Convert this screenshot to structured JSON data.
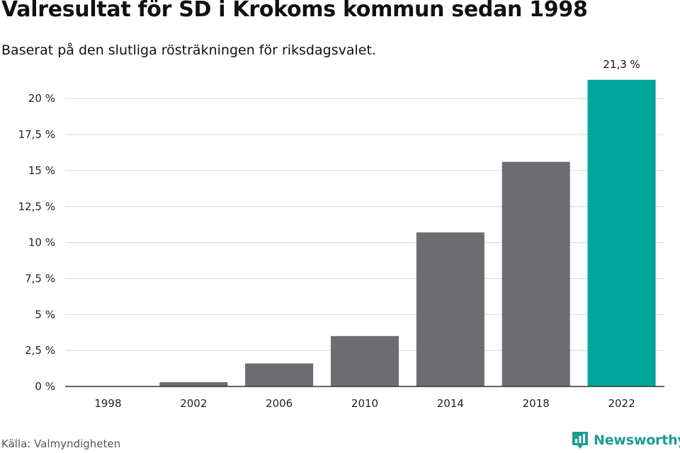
{
  "header": {
    "title": "Valresultat för SD i Krokoms kommun sedan 1998",
    "subtitle": "Baserat på den slutliga rösträkningen för riksdagsvalet."
  },
  "footer": {
    "source": "Källa: Valmyndigheten",
    "brand": "Newsworthy",
    "brand_icon": "newsworthy-logo-icon"
  },
  "colors": {
    "bar": "#6d6c71",
    "highlight": "#00a69a",
    "grid": "#dedede",
    "axis": "#333333",
    "brand": "#1a9e8f"
  },
  "chart_data": {
    "type": "bar",
    "title": "Valresultat för SD i Krokoms kommun sedan 1998",
    "subtitle": "Baserat på den slutliga rösträkningen för riksdagsvalet.",
    "categories": [
      "1998",
      "2002",
      "2006",
      "2010",
      "2014",
      "2018",
      "2022"
    ],
    "values": [
      0.0,
      0.3,
      1.6,
      3.5,
      10.7,
      15.6,
      21.3
    ],
    "highlight_index": 6,
    "data_labels": [
      {
        "index": 6,
        "text": "21,3 %"
      }
    ],
    "ylim": [
      0,
      21.3
    ],
    "yticks": [
      0,
      2.5,
      5,
      7.5,
      10,
      12.5,
      15,
      17.5,
      20
    ],
    "ytick_labels": [
      "0 %",
      "2,5 %",
      "5 %",
      "7,5 %",
      "10 %",
      "12,5 %",
      "15 %",
      "17,5 %",
      "20 %"
    ],
    "xlabel": "",
    "ylabel": "",
    "grid": true,
    "legend": "none"
  }
}
